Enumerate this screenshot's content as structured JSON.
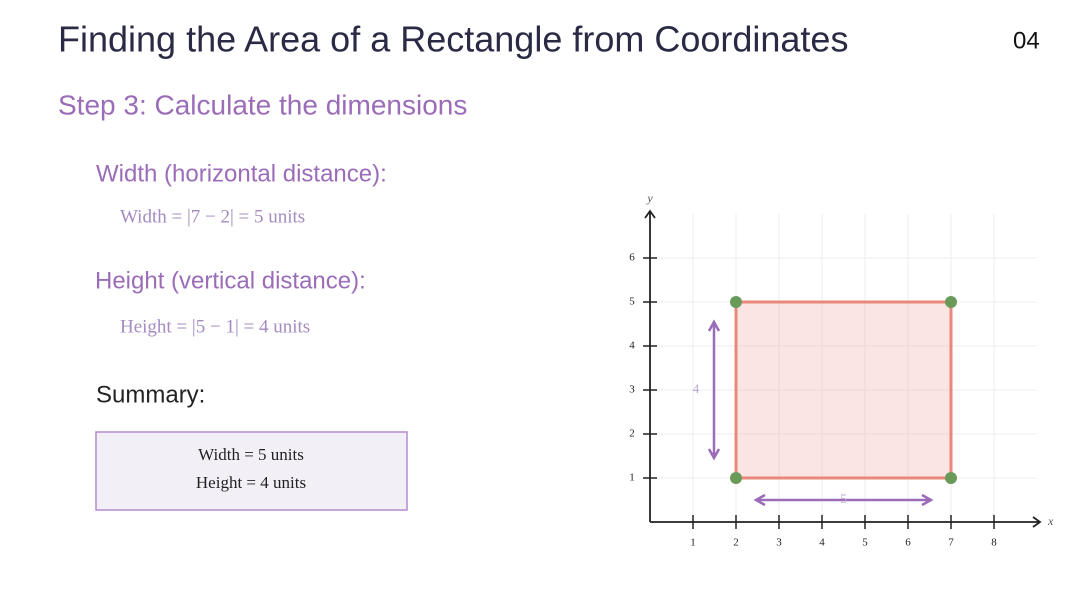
{
  "title": "Finding the Area of a Rectangle from Coordinates",
  "page_number": "04",
  "step": "Step 3: Calculate the dimensions",
  "width_heading": "Width (horizontal distance):",
  "width_formula": "Width = |7 − 2| = 5 units",
  "height_heading": "Height (vertical distance):",
  "height_formula": "Height = |5 − 1| = 4 units",
  "summary_heading": "Summary:",
  "summary": [
    "Width = 5 units",
    "Height = 4 units"
  ],
  "chart_data": {
    "type": "polygon",
    "x_label": "x",
    "y_label": "y",
    "x": [
      2,
      7,
      7,
      2
    ],
    "y": [
      1,
      1,
      5,
      5
    ],
    "color": "#e8877a",
    "point_color": "#6a9a5a",
    "xlim": [
      0,
      9
    ],
    "ylim": [
      0,
      7
    ],
    "xticks": [
      1,
      2,
      3,
      4,
      5,
      6,
      7,
      8
    ],
    "yticks": [
      1,
      2,
      3,
      4,
      5,
      6
    ],
    "grid": true,
    "width_label": 5,
    "height_label": 4
  }
}
